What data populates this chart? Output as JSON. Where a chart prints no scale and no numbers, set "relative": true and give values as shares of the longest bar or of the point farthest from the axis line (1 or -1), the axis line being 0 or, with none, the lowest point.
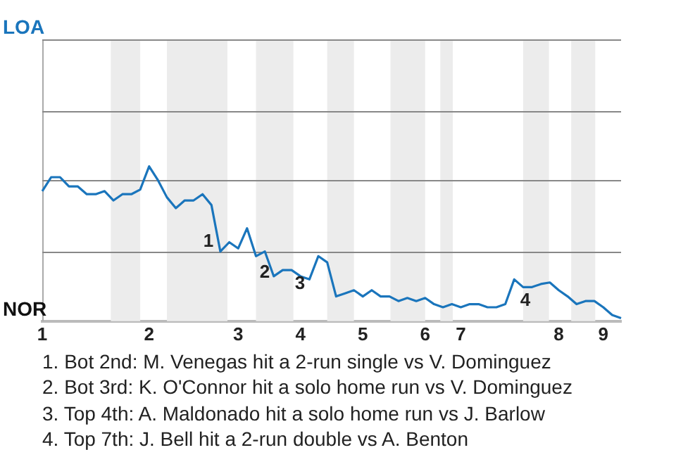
{
  "chart_data": {
    "type": "line",
    "relative": true,
    "categories": [
      "1",
      null,
      null,
      null,
      null,
      null,
      null,
      null,
      null,
      null,
      null,
      null,
      "2",
      null,
      null,
      null,
      null,
      null,
      null,
      null,
      null,
      null,
      "3",
      null,
      null,
      null,
      null,
      null,
      null,
      "4",
      null,
      null,
      null,
      null,
      null,
      null,
      "5",
      null,
      null,
      null,
      null,
      null,
      null,
      "6",
      null,
      null,
      null,
      "7",
      null,
      null,
      null,
      null,
      null,
      null,
      null,
      null,
      null,
      null,
      "8",
      null,
      null,
      null,
      null,
      "9",
      null,
      null
    ],
    "series": [
      {
        "color": "#1a75bc",
        "values": [
          0.84,
          0.93,
          0.93,
          0.87,
          0.87,
          0.82,
          0.82,
          0.84,
          0.78,
          0.82,
          0.82,
          0.85,
          1,
          0.91,
          0.8,
          0.73,
          0.78,
          0.78,
          0.82,
          0.75,
          0.45,
          0.51,
          0.47,
          0.6,
          0.42,
          0.45,
          0.29,
          0.33,
          0.33,
          0.29,
          0.27,
          0.42,
          0.38,
          0.16,
          0.18,
          0.2,
          0.16,
          0.2,
          0.16,
          0.16,
          0.13,
          0.15,
          0.13,
          0.15,
          0.11,
          0.09,
          0.11,
          0.09,
          0.11,
          0.11,
          0.09,
          0.09,
          0.11,
          0.27,
          0.22,
          0.22,
          0.24,
          0.25,
          0.2,
          0.16,
          0.11,
          0.13,
          0.13,
          0.09,
          0.04,
          0.02
        ]
      }
    ],
    "ref_lines": [
      {
        "axis": "y",
        "value": 0.45,
        "color": "#888888"
      },
      {
        "axis": "y",
        "value": 0.91,
        "color": "#888888"
      },
      {
        "axis": "y",
        "value": 1.36,
        "color": "#888888"
      },
      {
        "axis": "y",
        "value": 1.82,
        "color": "#888888"
      }
    ],
    "legend": false,
    "annotations": [
      "LOA",
      "NOR",
      "1",
      "2",
      "3",
      "4",
      "1. Bot 2nd: M. Venegas hit a 2-run single vs V. Dominguez",
      "2. Bot 3rd: K. O'Connor hit a solo home run vs V. Dominguez",
      "3. Top 4th: A. Maldonado hit a solo home run vs J. Barlow",
      "4. Top 7th: J. Bell hit a 2-run double vs A. Benton"
    ]
  }
}
